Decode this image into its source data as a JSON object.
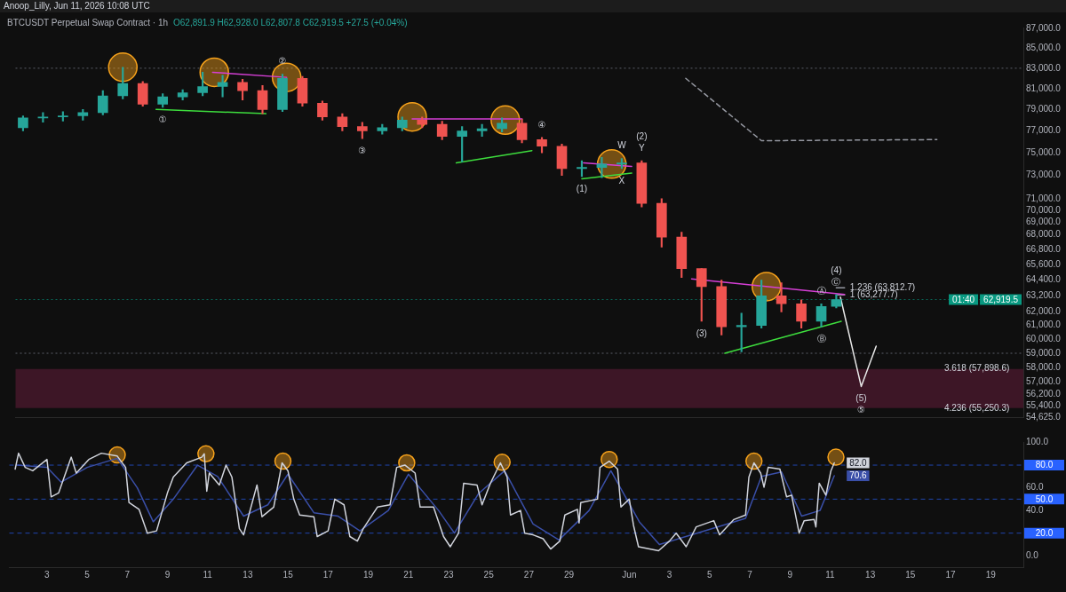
{
  "chart_data": [
    {
      "type": "candlestick",
      "title": "BTCUSDT Perpetual Swap Contract · 1h",
      "subtitle": "O62,891.9 H62,928.0 L62,807.8 C62,919.5 +27.5 (+0.04%)",
      "x": [
        "2026-05-01T12:00",
        "2026-05-02T12:00",
        "2026-05-03T12:00",
        "2026-05-04T12:00",
        "2026-05-05T12:00",
        "2026-05-06T12:00",
        "2026-05-07T12:00",
        "2026-05-08T12:00",
        "2026-05-09T12:00",
        "2026-05-10T12:00",
        "2026-05-11T12:00",
        "2026-05-12T12:00",
        "2026-05-13T12:00",
        "2026-05-14T12:00",
        "2026-05-15T12:00",
        "2026-05-16T12:00",
        "2026-05-17T12:00",
        "2026-05-18T12:00",
        "2026-05-19T12:00",
        "2026-05-20T12:00",
        "2026-05-21T12:00",
        "2026-05-22T12:00",
        "2026-05-23T12:00",
        "2026-05-24T12:00",
        "2026-05-25T12:00",
        "2026-05-26T12:00",
        "2026-05-27T12:00",
        "2026-05-28T12:00",
        "2026-05-29T12:00",
        "2026-05-30T12:00",
        "2026-05-31T12:00",
        "2026-06-01T12:00",
        "2026-06-02T12:00",
        "2026-06-03T12:00",
        "2026-06-04T12:00",
        "2026-06-05T12:00",
        "2026-06-06T12:00",
        "2026-06-07T12:00",
        "2026-06-08T12:00",
        "2026-06-09T12:00",
        "2026-06-10T12:00",
        "2026-06-11T06:00"
      ],
      "ohlc": [
        [
          77300,
          78400,
          77000,
          78200
        ],
        [
          78200,
          78700,
          77800,
          78300
        ],
        [
          78300,
          78800,
          77900,
          78400
        ],
        [
          78400,
          79000,
          78000,
          78700
        ],
        [
          78700,
          80800,
          78500,
          80300
        ],
        [
          80300,
          83100,
          80000,
          81500
        ],
        [
          81500,
          81700,
          79300,
          79500
        ],
        [
          79500,
          80500,
          79200,
          80200
        ],
        [
          80200,
          80900,
          79900,
          80600
        ],
        [
          80600,
          82600,
          80300,
          81200
        ],
        [
          81200,
          82300,
          80200,
          81600
        ],
        [
          81600,
          81900,
          79900,
          80800
        ],
        [
          80800,
          81300,
          78600,
          79000
        ],
        [
          79000,
          82400,
          78800,
          82000
        ],
        [
          82000,
          82200,
          79300,
          79600
        ],
        [
          79600,
          79800,
          78000,
          78300
        ],
        [
          78300,
          78600,
          77000,
          77400
        ],
        [
          77400,
          77800,
          76300,
          77000
        ],
        [
          77000,
          77600,
          76700,
          77300
        ],
        [
          77300,
          78300,
          77000,
          78000
        ],
        [
          78000,
          78300,
          77300,
          77600
        ],
        [
          77600,
          77900,
          76200,
          76500
        ],
        [
          76500,
          77400,
          74200,
          77000
        ],
        [
          77000,
          77600,
          76500,
          77200
        ],
        [
          77200,
          78200,
          76900,
          77700
        ],
        [
          77700,
          78100,
          75900,
          76200
        ],
        [
          76200,
          76400,
          75000,
          75600
        ],
        [
          75600,
          75800,
          73000,
          73600
        ],
        [
          73600,
          74300,
          72900,
          73700
        ],
        [
          73700,
          74600,
          72800,
          74000
        ],
        [
          74000,
          74500,
          73600,
          74100
        ],
        [
          74100,
          74300,
          70300,
          70600
        ],
        [
          70600,
          71000,
          67000,
          67800
        ],
        [
          67800,
          68200,
          64600,
          65300
        ],
        [
          65300,
          65300,
          61300,
          63900
        ],
        [
          63900,
          64400,
          60300,
          60900
        ],
        [
          60900,
          61900,
          59100,
          61000
        ],
        [
          61000,
          64400,
          60800,
          63200
        ],
        [
          63200,
          64200,
          62000,
          62600
        ],
        [
          62600,
          62900,
          60800,
          61300
        ],
        [
          61300,
          62600,
          60900,
          62400
        ],
        [
          62400,
          63300,
          62300,
          62919.5
        ]
      ],
      "colors": [
        "#26a69a",
        "#26a69a",
        "#26a69a",
        "#26a69a",
        "#26a69a",
        "#26a69a",
        "#ef5350",
        "#26a69a",
        "#26a69a",
        "#26a69a",
        "#26a69a",
        "#ef5350",
        "#ef5350",
        "#26a69a",
        "#ef5350",
        "#ef5350",
        "#ef5350",
        "#ef5350",
        "#26a69a",
        "#26a69a",
        "#ef5350",
        "#ef5350",
        "#26a69a",
        "#26a69a",
        "#26a69a",
        "#ef5350",
        "#ef5350",
        "#ef5350",
        "#26a69a",
        "#26a69a",
        "#26a69a",
        "#ef5350",
        "#ef5350",
        "#ef5350",
        "#ef5350",
        "#ef5350",
        "#26a69a",
        "#26a69a",
        "#ef5350",
        "#ef5350",
        "#26a69a",
        "#26a69a"
      ],
      "xlim": [
        "2026-05-01T03:00",
        "2026-06-20T15:00"
      ],
      "ylim": [
        54625,
        87100
      ],
      "yticks": [
        {
          "value": 54625,
          "label": "54,625.0"
        },
        {
          "value": 55400,
          "label": "55,400.0"
        },
        {
          "value": 56200,
          "label": "56,200.0"
        },
        {
          "value": 57000,
          "label": "57,000.0"
        },
        {
          "value": 58000,
          "label": "58,000.0"
        },
        {
          "value": 59000,
          "label": "59,000.0"
        },
        {
          "value": 60000,
          "label": "60,000.0"
        },
        {
          "value": 61000,
          "label": "61,000.0"
        },
        {
          "value": 62000,
          "label": "62,000.0"
        },
        {
          "value": 63200,
          "label": "63,200.0"
        },
        {
          "value": 64400,
          "label": "64,400.0"
        },
        {
          "value": 65600,
          "label": "65,600.0"
        },
        {
          "value": 66800,
          "label": "66,800.0"
        },
        {
          "value": 68000,
          "label": "68,000.0"
        },
        {
          "value": 69000,
          "label": "69,000.0"
        },
        {
          "value": 70000,
          "label": "70,000.0"
        },
        {
          "value": 71000,
          "label": "71,000.0"
        },
        {
          "value": 73000,
          "label": "73,000.0"
        },
        {
          "value": 75000,
          "label": "75,000.0"
        },
        {
          "value": 77000,
          "label": "77,000.0"
        },
        {
          "value": 79000,
          "label": "79,000.0"
        },
        {
          "value": 81000,
          "label": "81,000.0"
        },
        {
          "value": 83000,
          "label": "83,000.0"
        },
        {
          "value": 85000,
          "label": "85,000.0"
        },
        {
          "value": 87000,
          "label": "87,000.0"
        }
      ],
      "log": "y",
      "tick_labels": "y",
      "series": [
        {
          "type": "line",
          "color": "#3ddc3d",
          "x": [
            "2026-05-08T04:00",
            "2026-05-13T16:00"
          ],
          "values": [
            79000,
            78600
          ]
        },
        {
          "type": "line",
          "color": "#d63fd6",
          "x": [
            "2026-05-11T00:00",
            "2026-05-14T17:00"
          ],
          "values": [
            82600,
            82100
          ]
        },
        {
          "type": "line",
          "color": "#d63fd6",
          "x": [
            "2026-05-21T00:00",
            "2026-05-26T12:00"
          ],
          "values": [
            78100,
            78100
          ]
        },
        {
          "type": "line",
          "color": "#3ddc3d",
          "x": [
            "2026-05-23T05:00",
            "2026-05-27T00:00"
          ],
          "values": [
            74100,
            75200
          ]
        },
        {
          "type": "line",
          "color": "#d63fd6",
          "x": [
            "2026-05-29T14:00",
            "2026-06-01T00:00"
          ],
          "values": [
            74100,
            73800
          ]
        },
        {
          "type": "line",
          "color": "#3ddc3d",
          "x": [
            "2026-05-29T12:00",
            "2026-06-01T00:00"
          ],
          "values": [
            72700,
            73200
          ]
        },
        {
          "type": "line",
          "color": "#d63fd6",
          "x": [
            "2026-06-04T00:00",
            "2026-06-11T16:00"
          ],
          "values": [
            64500,
            63300
          ]
        },
        {
          "type": "line",
          "color": "#3ddc3d",
          "x": [
            "2026-06-05T16:00",
            "2026-06-11T12:00"
          ],
          "values": [
            59000,
            61300
          ]
        },
        {
          "type": "line",
          "color": "#e8e8e8",
          "x": [
            "2026-06-11T11:00",
            "2026-06-12T12:00",
            "2026-06-13T06:00"
          ],
          "values": [
            63100,
            56700,
            59500
          ]
        },
        {
          "type": "line",
          "color": "#9598a1",
          "line_style": "dashed",
          "x": [
            "2026-06-03T17:00",
            "2026-06-07T12:00",
            "2026-06-16T07:00"
          ],
          "values": [
            82000,
            76100,
            76200
          ]
        },
        {
          "type": "line",
          "color": "#9598a1",
          "x": [
            "2026-06-11T06:00",
            "2026-06-11T16:00"
          ],
          "values": [
            63812.7,
            63812.7
          ]
        },
        {
          "type": "line",
          "color": "#9598a1",
          "x": [
            "2026-06-11T06:00",
            "2026-06-11T16:00"
          ],
          "values": [
            63277.7,
            63277.7
          ]
        },
        {
          "type": "scatter",
          "color": "#f7a21b",
          "marker": "circle",
          "x": [
            "2026-05-06T12:00",
            "2026-05-11T02:00",
            "2026-05-14T17:00",
            "2026-05-21T00:00",
            "2026-05-25T16:00",
            "2026-05-31T00:00",
            "2026-06-07T18:00"
          ],
          "values": [
            83100,
            82600,
            82100,
            78300,
            78000,
            74000,
            63900
          ]
        }
      ],
      "ref_lines": [
        {
          "axis": "y",
          "value": 83000,
          "color": "#5d606b",
          "line_style": "dotted"
        },
        {
          "axis": "y",
          "value": 59000,
          "color": "#5d606b",
          "line_style": "dotted"
        },
        {
          "axis": "y",
          "value": 62919.5,
          "label": "62,919.5\n01:40",
          "color": "#089981",
          "line_style": "dotted"
        }
      ],
      "bands": [
        {
          "axis": "y",
          "from": 55250.3,
          "to": 57898.6,
          "color": "#3d1626"
        }
      ],
      "annotations": [
        "Anoop_Lilly, Jun 11, 2026 10:08 UTC",
        {
          "text": "①",
          "x": "2026-05-08T12:00",
          "y": 79200
        },
        {
          "text": "②",
          "x": "2026-05-14T12:00",
          "y": 82400
        },
        {
          "text": "③",
          "x": "2026-05-18T12:00",
          "y": 76300
        },
        {
          "text": "④",
          "x": "2026-05-27T12:00",
          "y": 76400
        },
        {
          "text": "(1)",
          "x": "2026-05-29T12:00",
          "y": 72900
        },
        {
          "text": "Y",
          "x": "2026-06-01T12:00",
          "y": 74300
        },
        {
          "text": "(2)",
          "x": "2026-06-01T12:00",
          "y": 74300
        },
        {
          "text": "W",
          "x": "2026-05-31T12:00",
          "y": 74500
        },
        {
          "text": "X",
          "x": "2026-05-31T12:00",
          "y": 73600
        },
        {
          "text": "(3)",
          "x": "2026-06-04T12:00",
          "y": 61300
        },
        {
          "text": "Ⓒ",
          "x": "2026-06-11T06:00",
          "y": 63300
        },
        {
          "text": "(4)",
          "x": "2026-06-11T06:00",
          "y": 63300
        },
        {
          "text": "Ⓐ",
          "x": "2026-06-10T12:00",
          "y": 62600
        },
        {
          "text": "Ⓑ",
          "x": "2026-06-10T12:00",
          "y": 60900
        },
        {
          "text": "(5)",
          "x": "2026-06-12T12:00",
          "y": 56700
        },
        {
          "text": "⑤",
          "x": "2026-06-12T12:00",
          "y": 56700
        },
        {
          "text": "1.236 (63,812.7)",
          "x": "2026-06-11T16:00",
          "y": 63812.7
        },
        {
          "text": "1 (63,277.7)",
          "x": "2026-06-11T16:00",
          "y": 63277.7
        },
        {
          "text": "3.618 (57,898.6)",
          "x": "2026-06-18T07:00",
          "y": 57898.6
        },
        {
          "text": "4.236 (55,250.3)",
          "x": "2026-06-18T07:00",
          "y": 55250.3
        }
      ]
    },
    {
      "type": "line",
      "xlim": [
        "2026-05-01T03:00",
        "2026-06-20T15:00"
      ],
      "xticks": [
        {
          "value": "2026-05-03",
          "label": "3"
        },
        {
          "value": "2026-05-05",
          "label": "5"
        },
        {
          "value": "2026-05-07",
          "label": "7"
        },
        {
          "value": "2026-05-09",
          "label": "9"
        },
        {
          "value": "2026-05-11",
          "label": "11"
        },
        {
          "value": "2026-05-13",
          "label": "13"
        },
        {
          "value": "2026-05-15",
          "label": "15"
        },
        {
          "value": "2026-05-17",
          "label": "17"
        },
        {
          "value": "2026-05-19",
          "label": "19"
        },
        {
          "value": "2026-05-21",
          "label": "21"
        },
        {
          "value": "2026-05-23",
          "label": "23"
        },
        {
          "value": "2026-05-25",
          "label": "25"
        },
        {
          "value": "2026-05-27",
          "label": "27"
        },
        {
          "value": "2026-05-29",
          "label": "29"
        },
        {
          "value": "2026-06-01",
          "label": "Jun"
        },
        {
          "value": "2026-06-03",
          "label": "3"
        },
        {
          "value": "2026-06-05",
          "label": "5"
        },
        {
          "value": "2026-06-07",
          "label": "7"
        },
        {
          "value": "2026-06-09",
          "label": "9"
        },
        {
          "value": "2026-06-11",
          "label": "11"
        },
        {
          "value": "2026-06-13",
          "label": "13"
        },
        {
          "value": "2026-06-15",
          "label": "15"
        },
        {
          "value": "2026-06-17",
          "label": "17"
        },
        {
          "value": "2026-06-19",
          "label": "19"
        }
      ],
      "ylim": [
        -10,
        100
      ],
      "yticks": [
        {
          "value": 0,
          "label": "0.0"
        },
        {
          "value": 40,
          "label": "40.0"
        },
        {
          "value": 60,
          "label": "60.0"
        },
        {
          "value": 100,
          "label": "100.0"
        }
      ],
      "series": [
        {
          "color": "#d1d4dc",
          "x": [
            "2026-05-01T10:00",
            "2026-05-01T14:00",
            "2026-05-01T22:00",
            "2026-05-02T07:00",
            "2026-05-03T00:00",
            "2026-05-03T05:00",
            "2026-05-03T14:00",
            "2026-05-04T05:00",
            "2026-05-04T11:00",
            "2026-05-05T02:00",
            "2026-05-05T17:00",
            "2026-05-06T12:00",
            "2026-05-06T22:00",
            "2026-05-07T02:00",
            "2026-05-07T14:00",
            "2026-05-08T00:00",
            "2026-05-08T11:00",
            "2026-05-09T00:00",
            "2026-05-09T07:00",
            "2026-05-09T23:00",
            "2026-05-10T17:00",
            "2026-05-10T20:00",
            "2026-05-10T23:00",
            "2026-05-11T02:00",
            "2026-05-11T14:00",
            "2026-05-11T22:00",
            "2026-05-12T05:00",
            "2026-05-12T14:00",
            "2026-05-12T19:00",
            "2026-05-13T02:00",
            "2026-05-13T11:00",
            "2026-05-13T17:00",
            "2026-05-14T07:00",
            "2026-05-14T17:00",
            "2026-05-15T00:00",
            "2026-05-15T07:00",
            "2026-05-15T14:00",
            "2026-05-16T07:00",
            "2026-05-16T11:00",
            "2026-05-17T00:00",
            "2026-05-17T08:00",
            "2026-05-17T19:00",
            "2026-05-18T02:00",
            "2026-05-18T11:00",
            "2026-05-18T18:00",
            "2026-05-19T11:00",
            "2026-05-20T02:00",
            "2026-05-20T10:00",
            "2026-05-20T20:00",
            "2026-05-21T08:00",
            "2026-05-21T14:00",
            "2026-05-22T06:00",
            "2026-05-22T18:00",
            "2026-05-23T02:00",
            "2026-05-23T12:00",
            "2026-05-23T18:00",
            "2026-05-24T10:00",
            "2026-05-24T16:00",
            "2026-05-25T02:00",
            "2026-05-25T14:00",
            "2026-05-25T22:00",
            "2026-05-26T02:00",
            "2026-05-26T14:00",
            "2026-05-26T19:00",
            "2026-05-27T05:00",
            "2026-05-27T17:00",
            "2026-05-28T02:00",
            "2026-05-28T13:00",
            "2026-05-28T19:00",
            "2026-05-29T10:00",
            "2026-05-29T12:00",
            "2026-05-29T14:00",
            "2026-05-30T10:00",
            "2026-05-30T13:00",
            "2026-05-31T00:00",
            "2026-05-31T10:00",
            "2026-05-31T14:00",
            "2026-06-01T00:00",
            "2026-06-01T05:00",
            "2026-06-01T11:00",
            "2026-06-02T11:00",
            "2026-06-03T00:00",
            "2026-06-03T08:00",
            "2026-06-03T20:00",
            "2026-06-04T08:00",
            "2026-06-05T05:00",
            "2026-06-05T12:00",
            "2026-06-06T05:00",
            "2026-06-06T19:00",
            "2026-06-06T23:00",
            "2026-06-07T05:00",
            "2026-06-07T13:00",
            "2026-06-07T17:00",
            "2026-06-07T22:00",
            "2026-06-08T12:00",
            "2026-06-08T20:00",
            "2026-06-09T02:00",
            "2026-06-09T11:00",
            "2026-06-09T17:00",
            "2026-06-10T05:00",
            "2026-06-10T07:00",
            "2026-06-10T11:00",
            "2026-06-10T19:00",
            "2026-06-11T01:00",
            "2026-06-11T05:00"
          ],
          "values": [
            76.5,
            90.5,
            78,
            75,
            85,
            52,
            55.5,
            87,
            73,
            85,
            90.5,
            88,
            78,
            47,
            41,
            20,
            22,
            55.5,
            69.5,
            82,
            87,
            90,
            57,
            73,
            62.5,
            80,
            69.5,
            24,
            18.5,
            38,
            62.5,
            34.5,
            43,
            82,
            75,
            50,
            36,
            34.5,
            17,
            22,
            50,
            45,
            17,
            13,
            24,
            43,
            45,
            78,
            80,
            73,
            43,
            43,
            17,
            8,
            20,
            64,
            62.5,
            45,
            64,
            82,
            69.5,
            36,
            40,
            20,
            18.5,
            15,
            6,
            13,
            36,
            41,
            29,
            47,
            50,
            78,
            83.5,
            76.5,
            43,
            50,
            27,
            8,
            4.5,
            13,
            20,
            8,
            25.5,
            31,
            18.5,
            32,
            36,
            69.5,
            82,
            73,
            60.5,
            78,
            76.5,
            52,
            53.5,
            20,
            31,
            32,
            25.5,
            64,
            53.5,
            75,
            82
          ],
          "value_labels": [
            null,
            null,
            null,
            null,
            null,
            null,
            null,
            null,
            null,
            null,
            null,
            null,
            null,
            null,
            null,
            null,
            null,
            null,
            null,
            null,
            null,
            null,
            null,
            null,
            null,
            null,
            null,
            null,
            null,
            null,
            null,
            null,
            null,
            null,
            null,
            null,
            null,
            null,
            null,
            null,
            null,
            null,
            null,
            null,
            null,
            null,
            null,
            null,
            null,
            null,
            null,
            null,
            null,
            null,
            null,
            null,
            null,
            null,
            null,
            null,
            null,
            null,
            null,
            null,
            null,
            null,
            null,
            null,
            null,
            null,
            null,
            null,
            null,
            null,
            null,
            null,
            null,
            null,
            null,
            null,
            null,
            null,
            null,
            null,
            null,
            null,
            null,
            null,
            null,
            null,
            null,
            null,
            null,
            null,
            null,
            null,
            null,
            null,
            null,
            null,
            null,
            null,
            null,
            null,
            "82.0"
          ]
        },
        {
          "color": "#3a4fa8",
          "x": [
            "2026-05-01T12:00",
            "2026-05-03T00:00",
            "2026-05-03T17:00",
            "2026-05-05T00:00",
            "2026-05-06T12:00",
            "2026-05-07T12:00",
            "2026-05-08T07:00",
            "2026-05-09T07:00",
            "2026-05-10T12:00",
            "2026-05-11T12:00",
            "2026-05-12T19:00",
            "2026-05-14T00:00",
            "2026-05-15T00:00",
            "2026-05-16T07:00",
            "2026-05-17T12:00",
            "2026-05-18T14:00",
            "2026-05-20T00:00",
            "2026-05-21T00:00",
            "2026-05-22T12:00",
            "2026-05-23T07:00",
            "2026-05-24T12:00",
            "2026-05-25T19:00",
            "2026-05-27T05:00",
            "2026-05-28T12:00",
            "2026-05-30T00:00",
            "2026-05-31T02:00",
            "2026-06-01T12:00",
            "2026-06-02T12:00",
            "2026-06-04T00:00",
            "2026-06-05T12:00",
            "2026-06-06T19:00",
            "2026-06-07T14:00",
            "2026-06-08T14:00",
            "2026-06-09T14:00",
            "2026-06-10T12:00",
            "2026-06-11T05:00"
          ],
          "values": [
            80,
            78,
            65,
            78,
            86,
            60,
            30,
            50,
            80,
            70,
            35,
            45,
            72,
            38,
            35,
            22,
            40,
            72,
            40,
            20,
            55,
            75,
            28,
            14,
            40,
            75,
            30,
            10,
            18,
            26,
            33,
            70,
            74,
            35,
            40,
            70.6
          ],
          "value_labels": [
            null,
            null,
            null,
            null,
            null,
            null,
            null,
            null,
            null,
            null,
            null,
            null,
            null,
            null,
            null,
            null,
            null,
            null,
            null,
            null,
            null,
            null,
            null,
            null,
            null,
            null,
            null,
            null,
            null,
            null,
            null,
            null,
            null,
            null,
            null,
            "70.6"
          ]
        },
        {
          "type": "scatter",
          "color": "#f7a21b",
          "marker": "circle",
          "x": [
            "2026-05-06T12:00",
            "2026-05-10T22:00",
            "2026-05-14T18:00",
            "2026-05-20T22:00",
            "2026-05-25T16:00",
            "2026-05-31T00:00",
            "2026-06-07T05:00",
            "2026-06-11T07:00"
          ],
          "values": [
            89,
            90,
            83.5,
            82,
            82.5,
            85,
            83.5,
            87
          ]
        }
      ],
      "ref_lines": [
        {
          "axis": "y",
          "value": 80,
          "label": "80.0",
          "color": "#2962ff",
          "line_style": "dashed"
        },
        {
          "axis": "y",
          "value": 50,
          "label": "50.0",
          "color": "#2962ff",
          "line_style": "dashed"
        },
        {
          "axis": "y",
          "value": 20,
          "label": "20.0",
          "color": "#2962ff",
          "line_style": "dashed"
        }
      ]
    }
  ]
}
